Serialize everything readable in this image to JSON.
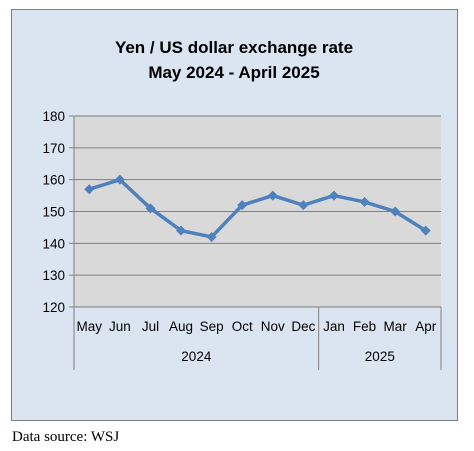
{
  "chart_data": {
    "type": "line",
    "title": "Yen / US dollar exchange rate",
    "subtitle": "May 2024 - April 2025",
    "categories": [
      "May",
      "Jun",
      "Jul",
      "Aug",
      "Sep",
      "Oct",
      "Nov",
      "Dec",
      "Jan",
      "Feb",
      "Mar",
      "Apr"
    ],
    "year_groups": [
      {
        "label": "2024",
        "months": 8
      },
      {
        "label": "2025",
        "months": 4
      }
    ],
    "series": [
      {
        "values": [
          157,
          160,
          151,
          144,
          142,
          152,
          155,
          152,
          155,
          153,
          150,
          144
        ]
      }
    ],
    "ylim": [
      120,
      180
    ],
    "yticks": [
      120,
      130,
      140,
      150,
      160,
      170,
      180
    ],
    "grid": true,
    "colors": {
      "line": "#4f81bd",
      "plot_bg": "#d9d9d9",
      "frame_bg": "#dbe5f1",
      "grid": "#808080"
    }
  },
  "footer": {
    "source": "Data source: WSJ"
  }
}
